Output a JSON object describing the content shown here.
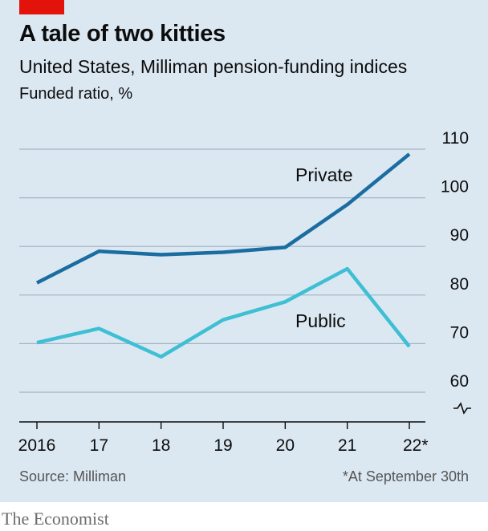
{
  "header": {
    "title": "A tale of two kitties",
    "subtitle": "United States, Milliman pension-funding indices",
    "unit": "Funded ratio, %"
  },
  "footer": {
    "source": "Source: Milliman",
    "note": "*At September 30th",
    "brand": "The Economist"
  },
  "colors": {
    "private": "#1a6da0",
    "public": "#3ebfd3",
    "grid": "#a3b3c0",
    "panel": "#dbe8f2",
    "accent": "#e3120b"
  },
  "chart_data": {
    "type": "line",
    "x": [
      "2016",
      "17",
      "18",
      "19",
      "20",
      "21",
      "22*"
    ],
    "series": [
      {
        "name": "Private",
        "values": [
          82.5,
          89,
          88.3,
          88.8,
          89.8,
          98.6,
          109
        ]
      },
      {
        "name": "Public",
        "values": [
          70.2,
          73.1,
          67.3,
          74.9,
          78.6,
          85.4,
          69.4
        ]
      }
    ],
    "yticks": [
      60,
      70,
      80,
      90,
      100,
      110
    ],
    "ylim": [
      55,
      110
    ],
    "axis_break": true,
    "grid": true,
    "series_labels_inline": true
  }
}
